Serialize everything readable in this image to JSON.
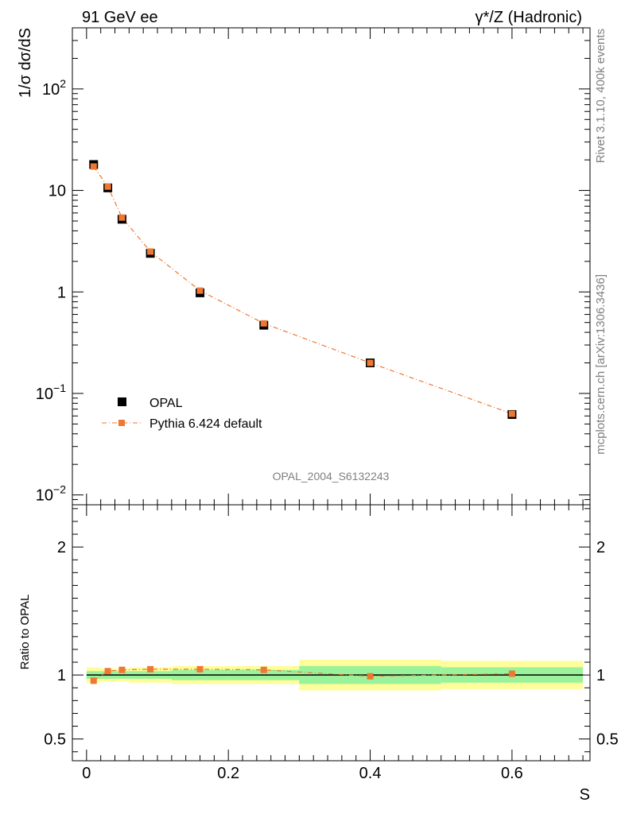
{
  "header": {
    "left": "91 GeV ee",
    "right": "γ*/Z (Hadronic)"
  },
  "side": {
    "rivet": "Rivet 3.1.10,  400k events",
    "mcplots": "mcplots.cern.ch [arXiv:1306.3436]"
  },
  "colors": {
    "data": "#000000",
    "mc": "#ee7733",
    "band_inner": "#9af29a",
    "band_outer": "#fdfd9a"
  },
  "chart_data": [
    {
      "type": "scatter",
      "panel": "main",
      "ylabel": "1/σ dσ/dS",
      "yscale": "log",
      "ylim": [
        0.008,
        400
      ],
      "xlim": [
        -0.02,
        0.71
      ],
      "yticks": [
        {
          "v": 0.01,
          "m": "10",
          "e": "−2"
        },
        {
          "v": 0.1,
          "m": "10",
          "e": "−1"
        },
        {
          "v": 1,
          "m": "1",
          "e": ""
        },
        {
          "v": 10,
          "m": "10",
          "e": ""
        },
        {
          "v": 100,
          "m": "10",
          "e": "2"
        }
      ],
      "annotation": "OPAL_2004_S6132243",
      "legend_position": "lower-left",
      "series": [
        {
          "name": "OPAL",
          "marker": "square",
          "x": [
            0.01,
            0.03,
            0.05,
            0.09,
            0.16,
            0.25,
            0.4,
            0.6
          ],
          "values": [
            18.0,
            10.6,
            5.2,
            2.4,
            0.98,
            0.47,
            0.2,
            0.062
          ]
        },
        {
          "name": "Pythia 6.424 default",
          "marker": "square-small",
          "line": "dash-dot",
          "x": [
            0.01,
            0.03,
            0.05,
            0.09,
            0.16,
            0.25,
            0.4,
            0.6
          ],
          "values": [
            17.2,
            10.9,
            5.4,
            2.5,
            1.03,
            0.49,
            0.2,
            0.063
          ]
        }
      ]
    },
    {
      "type": "scatter",
      "panel": "ratio",
      "ylabel": "Ratio to OPAL",
      "xlabel": "S",
      "ylim": [
        0.33,
        2.33
      ],
      "xlim": [
        -0.02,
        0.71
      ],
      "yticks": [
        0.5,
        1,
        2
      ],
      "ytick_labels": [
        "0.5",
        "1",
        "2"
      ],
      "xticks": [
        0,
        0.2,
        0.4,
        0.6
      ],
      "xtick_labels": [
        "0",
        "0.2",
        "0.4",
        "0.6"
      ],
      "bins": [
        {
          "lo": 0.0,
          "hi": 0.02,
          "inner": 0.03,
          "outer": 0.06
        },
        {
          "lo": 0.02,
          "hi": 0.04,
          "inner": 0.03,
          "outer": 0.05
        },
        {
          "lo": 0.04,
          "hi": 0.06,
          "inner": 0.03,
          "outer": 0.05
        },
        {
          "lo": 0.06,
          "hi": 0.12,
          "inner": 0.03,
          "outer": 0.06
        },
        {
          "lo": 0.12,
          "hi": 0.2,
          "inner": 0.04,
          "outer": 0.07
        },
        {
          "lo": 0.2,
          "hi": 0.3,
          "inner": 0.04,
          "outer": 0.07
        },
        {
          "lo": 0.3,
          "hi": 0.5,
          "inner": 0.07,
          "outer": 0.12
        },
        {
          "lo": 0.5,
          "hi": 0.7,
          "inner": 0.06,
          "outer": 0.11
        }
      ],
      "series": [
        {
          "name": "Pythia 6.424 default",
          "x": [
            0.01,
            0.03,
            0.05,
            0.09,
            0.16,
            0.25,
            0.4,
            0.6
          ],
          "values": [
            0.955,
            1.03,
            1.04,
            1.045,
            1.045,
            1.04,
            0.99,
            1.01
          ]
        }
      ]
    }
  ]
}
